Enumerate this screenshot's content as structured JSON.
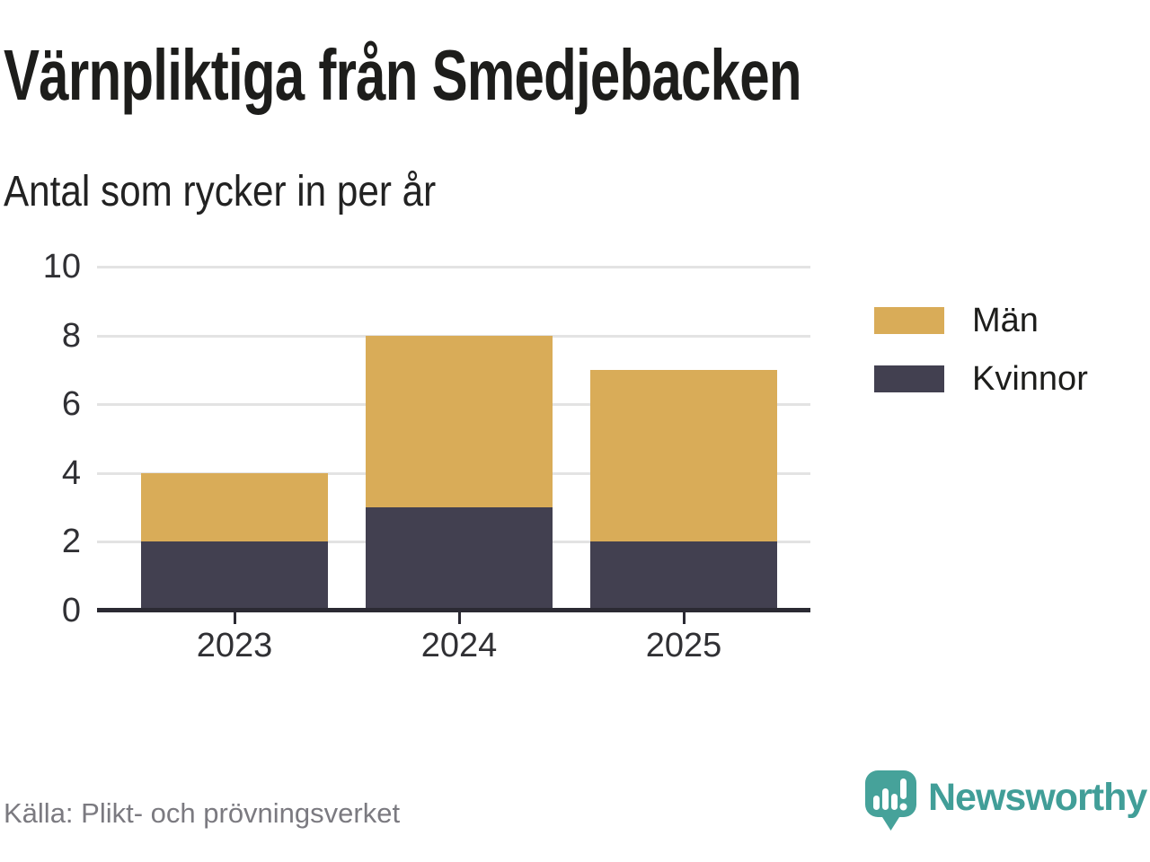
{
  "header": {
    "title": "Värnpliktiga från Smedjebacken",
    "subtitle": "Antal som rycker in per år"
  },
  "chart_data": {
    "type": "bar",
    "stacked": true,
    "title": "Värnpliktiga från Smedjebacken",
    "subtitle": "Antal som rycker in per år",
    "categories": [
      "2023",
      "2024",
      "2025"
    ],
    "series": [
      {
        "name": "Kvinnor",
        "color": "#424050",
        "values": [
          2,
          3,
          2
        ]
      },
      {
        "name": "Män",
        "color": "#d9ac58",
        "values": [
          2,
          5,
          5
        ]
      }
    ],
    "legend_order": [
      "Män",
      "Kvinnor"
    ],
    "stack_totals": [
      4,
      8,
      7
    ],
    "ylim": [
      0,
      10
    ],
    "yticks": [
      0,
      2,
      4,
      6,
      8,
      10
    ],
    "grid": true,
    "legend_position": "right"
  },
  "footer": {
    "source": "Källa: Plikt- och prövningsverket",
    "brand": "Newsworthy"
  },
  "colors": {
    "men": "#d9ac58",
    "women": "#424050",
    "axis": "#2b2a33",
    "grid": "#e3e3e3",
    "teal": "#419e98",
    "muted_text": "#7b7a80",
    "text": "#1d1d1b"
  }
}
